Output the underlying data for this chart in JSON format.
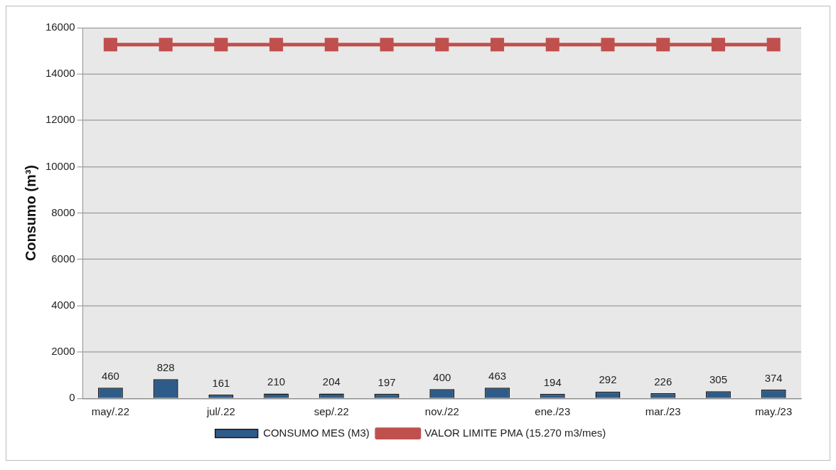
{
  "chart_data": {
    "type": "bar",
    "ylabel": "Consumo (m³)",
    "categories": [
      "may/.22",
      null,
      "jul/.22",
      null,
      "sep/.22",
      null,
      "nov./22",
      null,
      "ene./23",
      null,
      "mar./23",
      null,
      "may./23"
    ],
    "series": [
      {
        "name": "CONSUMO MES (M3)",
        "color": "#2e5c8a",
        "values": [
          460,
          828,
          161,
          210,
          204,
          197,
          400,
          463,
          194,
          292,
          226,
          305,
          374
        ],
        "value_labels": [
          "460",
          "828",
          "161",
          "210",
          "204",
          "197",
          "400",
          "463",
          "194",
          "292",
          "226",
          "305",
          "374"
        ]
      },
      {
        "name": "VALOR LIMITE PMA (15.270 m3/mes)",
        "type": "line",
        "color": "#c0504d",
        "values": [
          15270,
          15270,
          15270,
          15270,
          15270,
          15270,
          15270,
          15270,
          15270,
          15270,
          15270,
          15270,
          15270
        ]
      }
    ],
    "ylim": [
      0,
      16000
    ],
    "yticks": [
      0,
      2000,
      4000,
      6000,
      8000,
      10000,
      12000,
      14000,
      16000
    ],
    "grid": "y",
    "legend": "bottom",
    "marker": "square",
    "line_style": "solid"
  }
}
